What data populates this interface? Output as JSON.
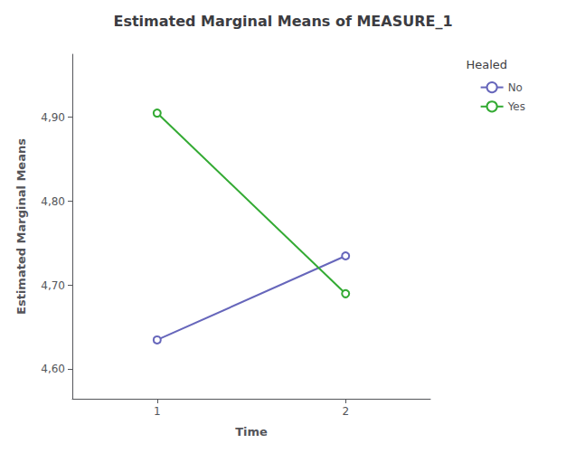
{
  "chart_data": {
    "type": "line",
    "title": "Estimated Marginal Means of MEASURE_1",
    "xlabel": "Time",
    "ylabel": "Estimated Marginal Means",
    "x": [
      1,
      2
    ],
    "series": [
      {
        "name": "No",
        "color": "#6666bb",
        "values": [
          4.635,
          4.735
        ]
      },
      {
        "name": "Yes",
        "color": "#33aa33",
        "values": [
          4.905,
          4.69
        ]
      }
    ],
    "xlim": [
      0.55,
      2.45
    ],
    "xticks": [
      1,
      2
    ],
    "ylim": [
      4.565,
      4.975
    ],
    "yticks": [
      {
        "value": 4.6,
        "label": "4,60"
      },
      {
        "value": 4.7,
        "label": "4,70"
      },
      {
        "value": 4.8,
        "label": "4,80"
      },
      {
        "value": 4.9,
        "label": "4,90"
      }
    ],
    "grid": false,
    "legend": "right",
    "legend_title": "Healed",
    "marker": "circle"
  }
}
